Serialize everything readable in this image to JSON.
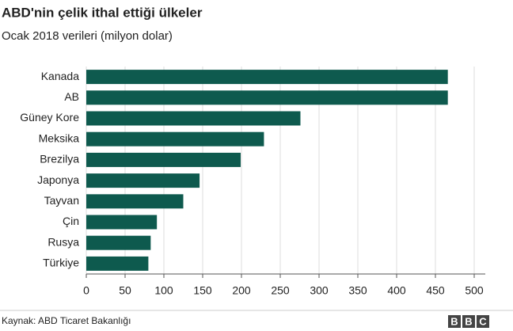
{
  "chart_data": {
    "type": "bar",
    "orientation": "horizontal",
    "title": "ABD'nin çelik ithal ettiği ülkeler",
    "subtitle": "Ocak 2018 verileri (milyon dolar)",
    "categories": [
      "Kanada",
      "AB",
      "Güney Kore",
      "Meksika",
      "Brezilya",
      "Japonya",
      "Tayvan",
      "Çin",
      "Rusya",
      "Türkiye"
    ],
    "values": [
      466,
      466,
      276,
      229,
      199,
      146,
      125,
      91,
      83,
      80
    ],
    "color": "#0e5a4e",
    "xlim": [
      0,
      500
    ],
    "xticks": [
      0,
      50,
      100,
      150,
      200,
      250,
      300,
      350,
      400,
      450,
      500
    ],
    "grid": true,
    "source": "Kaynak: ABD Ticaret Bakanlığı",
    "logo": [
      "B",
      "B",
      "C"
    ]
  }
}
